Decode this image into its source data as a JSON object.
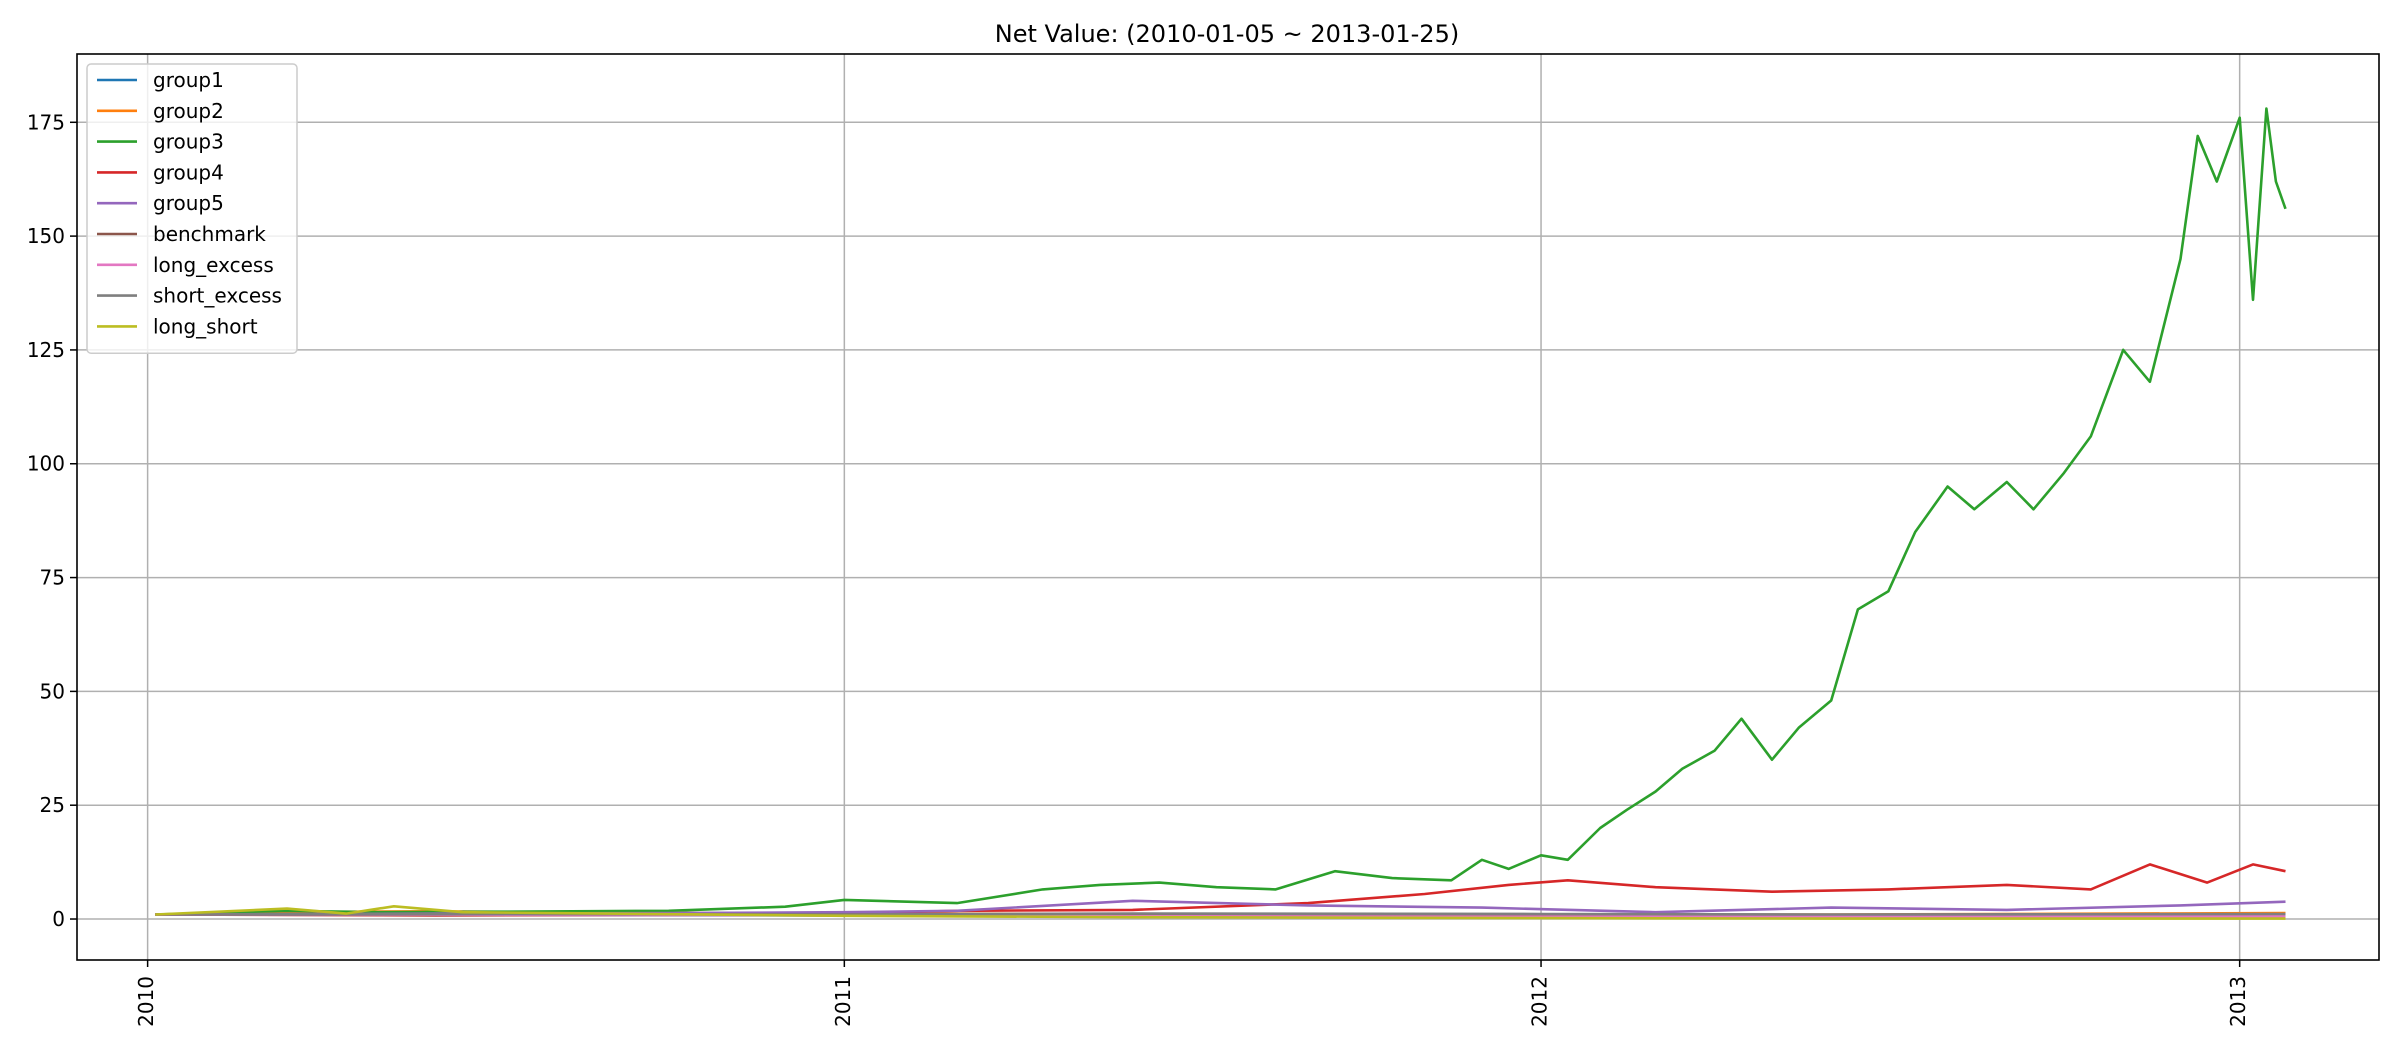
{
  "chart_data": {
    "type": "line",
    "title": "Net Value: (2010-01-05 ~ 2013-01-25)",
    "xlabel": "",
    "ylabel": "",
    "x_range": [
      "2009-11-25",
      "2013-03-15"
    ],
    "ylim": [
      -9,
      190
    ],
    "x_ticks": [
      {
        "label": "2010",
        "date": "2010-01-01"
      },
      {
        "label": "2011",
        "date": "2011-01-01"
      },
      {
        "label": "2012",
        "date": "2012-01-01"
      },
      {
        "label": "2013",
        "date": "2013-01-01"
      }
    ],
    "y_ticks": [
      0,
      25,
      50,
      75,
      100,
      125,
      150,
      175
    ],
    "grid": true,
    "legend_position": "upper-left",
    "series": [
      {
        "name": "group1",
        "color": "#1f77b4",
        "x": [
          "2010-01-05",
          "2010-06-01",
          "2011-01-01",
          "2011-06-01",
          "2012-01-01",
          "2012-06-01",
          "2013-01-25"
        ],
        "y": [
          1.0,
          0.9,
          0.8,
          0.7,
          0.6,
          0.8,
          1.1
        ]
      },
      {
        "name": "group2",
        "color": "#ff7f0e",
        "x": [
          "2010-01-05",
          "2010-03-01",
          "2010-06-01",
          "2010-09-01",
          "2011-01-01",
          "2011-06-01",
          "2012-01-01",
          "2012-06-01",
          "2013-01-25"
        ],
        "y": [
          1.0,
          1.5,
          1.7,
          1.4,
          1.2,
          1.1,
          0.9,
          1.0,
          1.3
        ]
      },
      {
        "name": "group3",
        "color": "#2ca02c",
        "x": [
          "2010-01-05",
          "2010-03-15",
          "2010-05-01",
          "2010-07-01",
          "2010-10-01",
          "2010-12-01",
          "2011-01-01",
          "2011-03-01",
          "2011-04-15",
          "2011-05-15",
          "2011-06-15",
          "2011-07-15",
          "2011-08-15",
          "2011-09-15",
          "2011-10-15",
          "2011-11-15",
          "2011-12-01",
          "2011-12-15",
          "2012-01-01",
          "2012-01-15",
          "2012-02-01",
          "2012-02-15",
          "2012-03-01",
          "2012-03-15",
          "2012-04-01",
          "2012-04-15",
          "2012-05-01",
          "2012-05-15",
          "2012-06-01",
          "2012-06-15",
          "2012-07-01",
          "2012-07-15",
          "2012-08-01",
          "2012-08-15",
          "2012-09-01",
          "2012-09-15",
          "2012-10-01",
          "2012-10-15",
          "2012-11-01",
          "2012-11-15",
          "2012-12-01",
          "2012-12-10",
          "2012-12-20",
          "2013-01-01",
          "2013-01-08",
          "2013-01-15",
          "2013-01-20",
          "2013-01-25"
        ],
        "y": [
          1.0,
          1.8,
          1.5,
          1.6,
          1.8,
          2.7,
          4.2,
          3.5,
          6.5,
          7.5,
          8.0,
          7.0,
          6.5,
          10.5,
          9.0,
          8.5,
          13.0,
          11.0,
          14.0,
          13.0,
          20.0,
          24.0,
          28.0,
          33.0,
          37.0,
          44.0,
          35.0,
          42.0,
          48.0,
          68.0,
          72.0,
          85.0,
          95.0,
          90.0,
          96.0,
          90.0,
          98.0,
          106.0,
          125.0,
          118.0,
          145.0,
          172.0,
          162.0,
          176.0,
          136.0,
          178.0,
          162.0,
          156.0
        ]
      },
      {
        "name": "group4",
        "color": "#d62728",
        "x": [
          "2010-01-05",
          "2010-06-01",
          "2010-10-01",
          "2011-01-01",
          "2011-03-01",
          "2011-06-01",
          "2011-09-01",
          "2011-11-01",
          "2011-12-15",
          "2012-01-15",
          "2012-03-01",
          "2012-05-01",
          "2012-07-01",
          "2012-09-01",
          "2012-10-15",
          "2012-11-15",
          "2012-12-15",
          "2013-01-08",
          "2013-01-25"
        ],
        "y": [
          1.0,
          0.8,
          0.9,
          1.2,
          1.8,
          2.0,
          3.5,
          5.5,
          7.5,
          8.5,
          7.0,
          6.0,
          6.5,
          7.5,
          6.5,
          12.0,
          8.0,
          12.0,
          10.5
        ]
      },
      {
        "name": "group5",
        "color": "#9467bd",
        "x": [
          "2010-01-05",
          "2010-06-01",
          "2010-10-01",
          "2011-01-01",
          "2011-03-01",
          "2011-06-01",
          "2011-09-01",
          "2011-12-01",
          "2012-03-01",
          "2012-06-01",
          "2012-09-01",
          "2012-12-01",
          "2013-01-25"
        ],
        "y": [
          1.0,
          1.2,
          1.3,
          1.5,
          1.8,
          4.0,
          3.0,
          2.5,
          1.5,
          2.5,
          2.0,
          3.0,
          3.8
        ]
      },
      {
        "name": "benchmark",
        "color": "#8c564b",
        "x": [
          "2010-01-05",
          "2010-06-01",
          "2011-01-01",
          "2011-06-01",
          "2012-01-01",
          "2012-06-01",
          "2013-01-25"
        ],
        "y": [
          1.0,
          0.9,
          1.0,
          0.9,
          0.8,
          0.9,
          1.0
        ]
      },
      {
        "name": "long_excess",
        "color": "#e377c2",
        "x": [
          "2010-01-05",
          "2010-06-01",
          "2011-01-01",
          "2011-06-01",
          "2012-01-01",
          "2012-06-01",
          "2013-01-25"
        ],
        "y": [
          1.0,
          1.0,
          0.8,
          0.6,
          0.5,
          0.5,
          0.6
        ]
      },
      {
        "name": "short_excess",
        "color": "#7f7f7f",
        "x": [
          "2010-01-05",
          "2010-06-01",
          "2011-01-01",
          "2011-06-01",
          "2012-01-01",
          "2012-06-01",
          "2013-01-25"
        ],
        "y": [
          1.0,
          1.1,
          1.0,
          1.2,
          1.1,
          1.0,
          1.1
        ]
      },
      {
        "name": "long_short",
        "color": "#bcbd22",
        "x": [
          "2010-01-05",
          "2010-03-15",
          "2010-04-15",
          "2010-05-10",
          "2010-06-15",
          "2010-09-01",
          "2011-01-01",
          "2011-06-01",
          "2012-01-01",
          "2012-06-01",
          "2013-01-25"
        ],
        "y": [
          1.0,
          2.3,
          1.2,
          2.8,
          1.5,
          1.2,
          0.7,
          0.4,
          0.2,
          0.1,
          0.1
        ]
      }
    ]
  }
}
